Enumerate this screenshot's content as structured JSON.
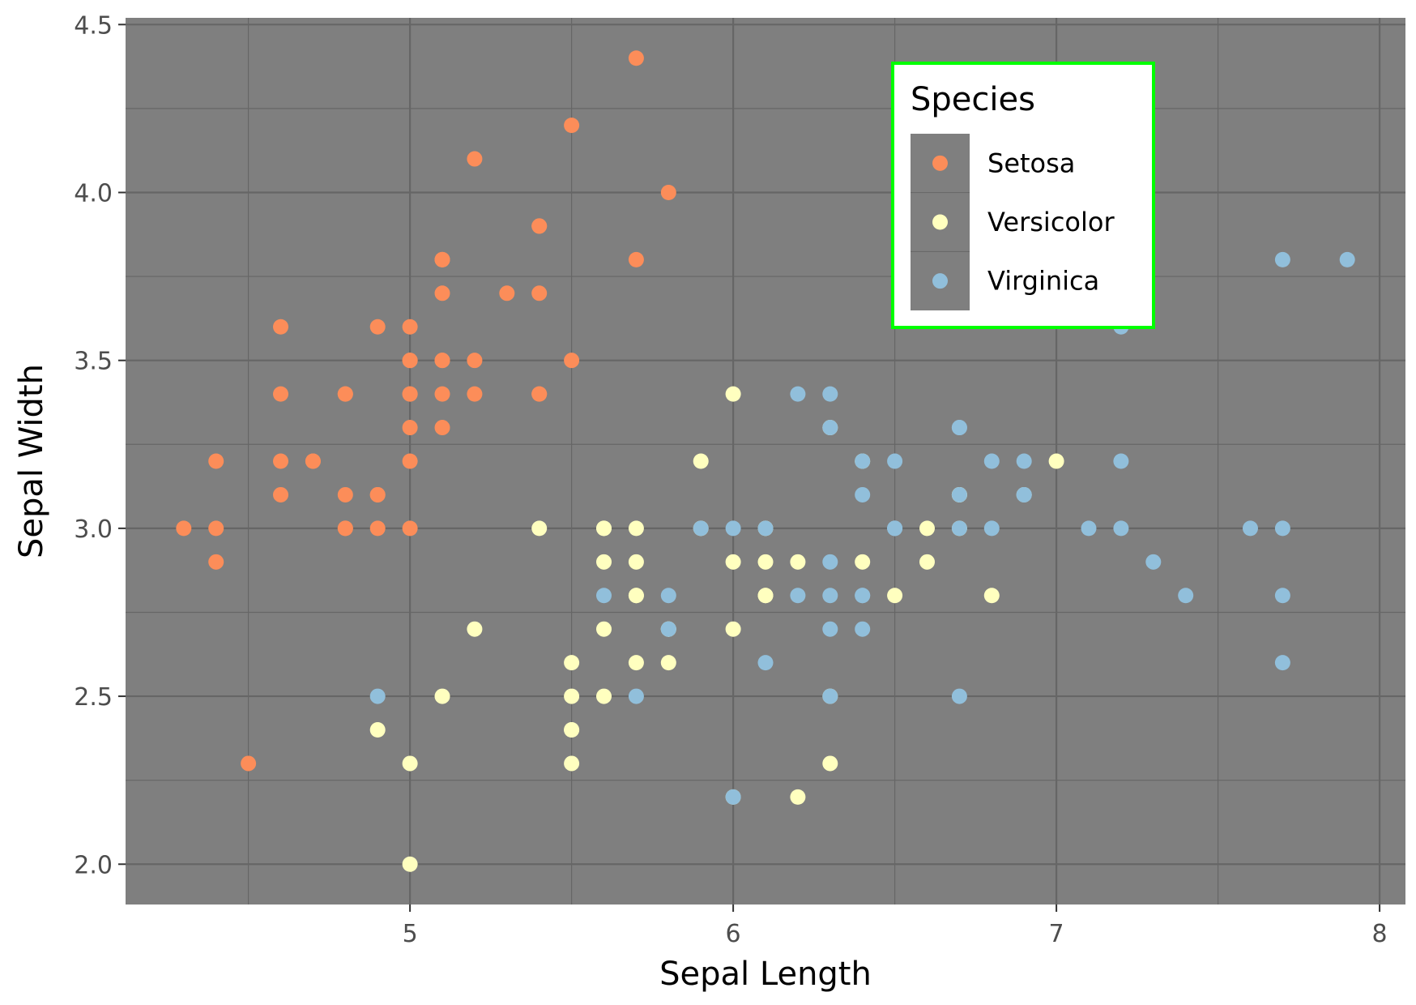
{
  "chart_data": {
    "type": "scatter",
    "xlabel": "Sepal Length",
    "ylabel": "Sepal Width",
    "xlim": [
      4.12,
      8.08
    ],
    "ylim": [
      1.88,
      4.52
    ],
    "x_ticks": [
      5,
      6,
      7,
      8
    ],
    "x_tick_labels": [
      "5",
      "6",
      "7",
      "8"
    ],
    "y_ticks": [
      2.0,
      2.5,
      3.0,
      3.5,
      4.0,
      4.5
    ],
    "y_tick_labels": [
      "2.0",
      "2.5",
      "3.0",
      "3.5",
      "4.0",
      "4.5"
    ],
    "grid": true,
    "panel_background": "#7f7f7f",
    "grid_color": "#666666",
    "legend": {
      "title": "Species",
      "placement": "top-right",
      "border_color": "#00ff00"
    },
    "series": [
      {
        "name": "Setosa",
        "color": "#fc8d59",
        "points": [
          [
            5.1,
            3.5
          ],
          [
            4.9,
            3.0
          ],
          [
            4.7,
            3.2
          ],
          [
            4.6,
            3.1
          ],
          [
            5.0,
            3.6
          ],
          [
            5.4,
            3.9
          ],
          [
            4.6,
            3.4
          ],
          [
            5.0,
            3.4
          ],
          [
            4.4,
            2.9
          ],
          [
            4.9,
            3.1
          ],
          [
            5.4,
            3.7
          ],
          [
            4.8,
            3.4
          ],
          [
            4.8,
            3.0
          ],
          [
            4.3,
            3.0
          ],
          [
            5.8,
            4.0
          ],
          [
            5.7,
            4.4
          ],
          [
            5.4,
            3.9
          ],
          [
            5.1,
            3.5
          ],
          [
            5.7,
            3.8
          ],
          [
            5.1,
            3.8
          ],
          [
            5.4,
            3.4
          ],
          [
            5.1,
            3.7
          ],
          [
            4.6,
            3.6
          ],
          [
            5.1,
            3.3
          ],
          [
            4.8,
            3.4
          ],
          [
            5.0,
            3.0
          ],
          [
            5.0,
            3.4
          ],
          [
            5.2,
            3.5
          ],
          [
            5.2,
            3.4
          ],
          [
            4.7,
            3.2
          ],
          [
            4.8,
            3.1
          ],
          [
            5.4,
            3.4
          ],
          [
            5.2,
            4.1
          ],
          [
            5.5,
            4.2
          ],
          [
            4.9,
            3.1
          ],
          [
            5.0,
            3.2
          ],
          [
            5.5,
            3.5
          ],
          [
            4.9,
            3.6
          ],
          [
            4.4,
            3.0
          ],
          [
            5.1,
            3.4
          ],
          [
            5.0,
            3.5
          ],
          [
            4.5,
            2.3
          ],
          [
            4.4,
            3.2
          ],
          [
            5.0,
            3.5
          ],
          [
            5.1,
            3.8
          ],
          [
            4.8,
            3.0
          ],
          [
            5.1,
            3.8
          ],
          [
            4.6,
            3.2
          ],
          [
            5.3,
            3.7
          ],
          [
            5.0,
            3.3
          ]
        ]
      },
      {
        "name": "Versicolor",
        "color": "#ffffbf",
        "points": [
          [
            7.0,
            3.2
          ],
          [
            6.4,
            3.2
          ],
          [
            6.9,
            3.1
          ],
          [
            5.5,
            2.3
          ],
          [
            6.5,
            2.8
          ],
          [
            5.7,
            2.8
          ],
          [
            6.3,
            3.3
          ],
          [
            4.9,
            2.4
          ],
          [
            6.6,
            2.9
          ],
          [
            5.2,
            2.7
          ],
          [
            5.0,
            2.0
          ],
          [
            5.9,
            3.0
          ],
          [
            6.0,
            2.2
          ],
          [
            6.1,
            2.9
          ],
          [
            5.6,
            2.9
          ],
          [
            6.7,
            3.1
          ],
          [
            5.6,
            3.0
          ],
          [
            5.8,
            2.7
          ],
          [
            6.2,
            2.2
          ],
          [
            5.6,
            2.5
          ],
          [
            5.9,
            3.2
          ],
          [
            6.1,
            2.8
          ],
          [
            6.3,
            2.5
          ],
          [
            6.1,
            2.8
          ],
          [
            6.4,
            2.9
          ],
          [
            6.6,
            3.0
          ],
          [
            6.8,
            2.8
          ],
          [
            6.7,
            3.0
          ],
          [
            6.0,
            2.9
          ],
          [
            5.7,
            2.6
          ],
          [
            5.5,
            2.4
          ],
          [
            5.5,
            2.4
          ],
          [
            5.8,
            2.7
          ],
          [
            6.0,
            2.7
          ],
          [
            5.4,
            3.0
          ],
          [
            6.0,
            3.4
          ],
          [
            6.7,
            3.1
          ],
          [
            6.3,
            2.3
          ],
          [
            5.6,
            3.0
          ],
          [
            5.5,
            2.5
          ],
          [
            5.5,
            2.6
          ],
          [
            6.1,
            3.0
          ],
          [
            5.8,
            2.6
          ],
          [
            5.0,
            2.3
          ],
          [
            5.6,
            2.7
          ],
          [
            5.7,
            3.0
          ],
          [
            5.7,
            2.9
          ],
          [
            6.2,
            2.9
          ],
          [
            5.1,
            2.5
          ],
          [
            5.7,
            2.8
          ]
        ]
      },
      {
        "name": "Virginica",
        "color": "#91bfdb",
        "points": [
          [
            6.3,
            3.3
          ],
          [
            5.8,
            2.7
          ],
          [
            7.1,
            3.0
          ],
          [
            6.3,
            2.9
          ],
          [
            6.5,
            3.0
          ],
          [
            7.6,
            3.0
          ],
          [
            4.9,
            2.5
          ],
          [
            7.3,
            2.9
          ],
          [
            6.7,
            2.5
          ],
          [
            7.2,
            3.6
          ],
          [
            6.5,
            3.2
          ],
          [
            6.4,
            2.7
          ],
          [
            6.8,
            3.0
          ],
          [
            5.7,
            2.5
          ],
          [
            5.8,
            2.8
          ],
          [
            6.4,
            3.2
          ],
          [
            6.5,
            3.0
          ],
          [
            7.7,
            3.8
          ],
          [
            7.7,
            2.6
          ],
          [
            6.0,
            2.2
          ],
          [
            6.9,
            3.2
          ],
          [
            5.6,
            2.8
          ],
          [
            7.7,
            2.8
          ],
          [
            6.3,
            2.7
          ],
          [
            6.7,
            3.3
          ],
          [
            7.2,
            3.2
          ],
          [
            6.2,
            2.8
          ],
          [
            6.1,
            3.0
          ],
          [
            6.4,
            2.8
          ],
          [
            7.2,
            3.0
          ],
          [
            7.4,
            2.8
          ],
          [
            7.9,
            3.8
          ],
          [
            6.4,
            2.8
          ],
          [
            6.3,
            2.8
          ],
          [
            6.1,
            2.6
          ],
          [
            7.7,
            3.0
          ],
          [
            6.3,
            3.4
          ],
          [
            6.4,
            3.1
          ],
          [
            6.0,
            3.0
          ],
          [
            6.9,
            3.1
          ],
          [
            6.7,
            3.1
          ],
          [
            6.9,
            3.1
          ],
          [
            5.8,
            2.7
          ],
          [
            6.8,
            3.2
          ],
          [
            6.7,
            3.3
          ],
          [
            6.7,
            3.0
          ],
          [
            6.3,
            2.5
          ],
          [
            6.5,
            3.0
          ],
          [
            6.2,
            3.4
          ],
          [
            5.9,
            3.0
          ]
        ]
      }
    ]
  }
}
